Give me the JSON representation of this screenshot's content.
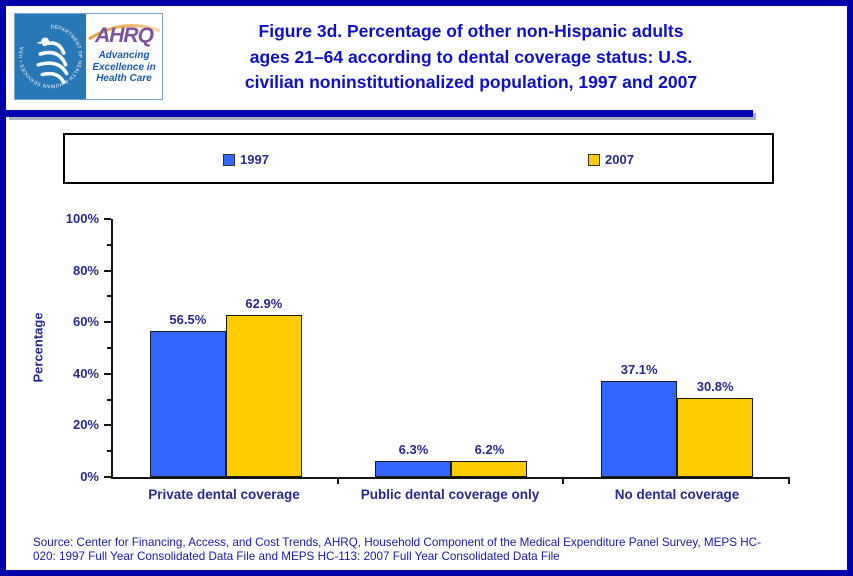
{
  "page": {
    "border_color": "#0000A8",
    "divider_color": "#0000B0"
  },
  "header": {
    "logo": {
      "hhs_ring_text": "DEPARTMENT OF HEALTH & HUMAN SERVICES • USA",
      "ahrq_acronym": "AHRQ",
      "tagline_lines": [
        "Advancing",
        "Excellence in",
        "Health Care"
      ]
    },
    "title_lines": [
      "Figure 3d. Percentage of other non-Hispanic adults",
      "ages 21–64 according to dental coverage status: U.S.",
      "civilian noninstitutionalized population, 1997 and 2007"
    ]
  },
  "legend": {
    "items": [
      {
        "label": "1997",
        "color": "#3366FF"
      },
      {
        "label": "2007",
        "color": "#FFCC00"
      }
    ]
  },
  "chart_data": {
    "type": "bar",
    "title": "Figure 3d. Percentage of other non-Hispanic adults ages 21–64 according to dental coverage status: U.S. civilian noninstitutionalized population, 1997 and 2007",
    "categories": [
      "Private dental coverage",
      "Public dental coverage only",
      "No dental coverage"
    ],
    "series": [
      {
        "name": "1997",
        "color": "#3366FF",
        "values": [
          56.5,
          6.3,
          37.1
        ],
        "value_labels": [
          "56.5%",
          "6.3%",
          "37.1%"
        ]
      },
      {
        "name": "2007",
        "color": "#FFCC00",
        "values": [
          62.9,
          6.2,
          30.8
        ],
        "value_labels": [
          "62.9%",
          "6.2%",
          "30.8%"
        ]
      }
    ],
    "xlabel": "",
    "ylabel": "Percentage",
    "ylim": [
      0,
      100
    ],
    "ytick_step": 20,
    "ytick_labels": [
      "0%",
      "20%",
      "40%",
      "60%",
      "80%",
      "100%"
    ],
    "minor_tick_step": 10,
    "grid": false,
    "legend_position": "top"
  },
  "footer": {
    "source_lines": [
      "Source: Center for Financing, Access, and Cost Trends, AHRQ, Household Component of the Medical Expenditure Panel Survey, MEPS HC-",
      "020: 1997 Full Year Consolidated Data File and MEPS HC-113: 2007 Full Year Consolidated Data File"
    ]
  }
}
